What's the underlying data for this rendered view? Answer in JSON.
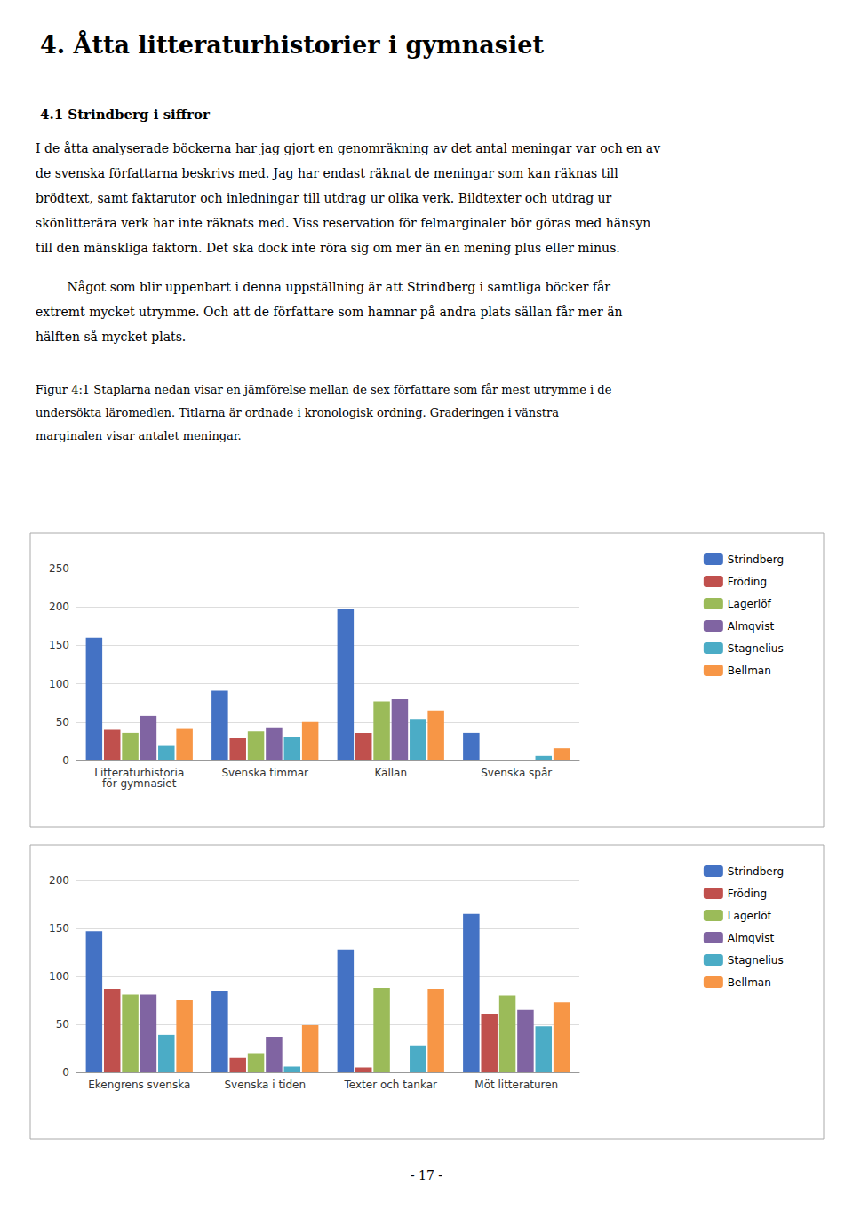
{
  "title": "4. Åtta litteraturhistorier i gymnasiet",
  "subtitle": "4.1 Strindberg i siffror",
  "annotations": [
    [
      "I de åtta analyserade böckerna har jag gjort en genomräkning av det antal meningar var och en av",
      "de svenska författarna beskrivs med. Jag har endast räknat de meningar som kan räknas till",
      "brödtext, samt faktarutor och inledningar till utdrag ur olika verk. Bildtexter och utdrag ur",
      "skönlitterära verk har inte räknats med. Viss reservation för felmarginaler bör göras med hänsyn",
      "till den mänskliga faktorn. Det ska dock inte röra sig om mer än en mening plus eller minus."
    ],
    [
      "        Något som blir uppenbart i denna uppställning är att Strindberg i samtliga böcker får",
      "extremt mycket utrymme. Och att de författare som hamnar på andra plats sällan får mer än",
      "hälften så mycket plats."
    ],
    [
      "Figur 4:1 Staplarna nedan visar en jämförelse mellan de sex författare som får mest utrymme i de",
      "undersökta läromedlen. Titlarna är ordnade i kronologisk ordning. Graderingen i vänstra",
      "marginalen visar antalet meningar."
    ],
    [
      "- 17 -"
    ]
  ],
  "chart_data": [
    {
      "type": "bar",
      "categories": [
        "Litteraturhistoria\nför gymnasiet",
        "Svenska timmar",
        "Källan",
        "Svenska spår"
      ],
      "series": [
        {
          "name": "Strindberg",
          "color": "#4472C4",
          "values": [
            160,
            91,
            197,
            36
          ]
        },
        {
          "name": "Fröding",
          "color": "#C0504D",
          "values": [
            40,
            29,
            36,
            0
          ]
        },
        {
          "name": "Lagerlöf",
          "color": "#9BBB59",
          "values": [
            36,
            38,
            77,
            0
          ]
        },
        {
          "name": "Almqvist",
          "color": "#8064A2",
          "values": [
            58,
            43,
            80,
            0
          ]
        },
        {
          "name": "Stagnelius",
          "color": "#4BACC6",
          "values": [
            19,
            30,
            54,
            6
          ]
        },
        {
          "name": "Bellman",
          "color": "#F79646",
          "values": [
            41,
            50,
            65,
            16
          ]
        }
      ],
      "ylim": [
        0,
        250
      ],
      "yticks": [
        0,
        50,
        100,
        150,
        200,
        250
      ],
      "grid": true,
      "legend": "upper right"
    },
    {
      "type": "bar",
      "categories": [
        "Ekengrens svenska",
        "Svenska i tiden",
        "Texter och tankar",
        "Möt litteraturen"
      ],
      "series": [
        {
          "name": "Strindberg",
          "color": "#4472C4",
          "values": [
            147,
            85,
            128,
            165
          ]
        },
        {
          "name": "Fröding",
          "color": "#C0504D",
          "values": [
            87,
            15,
            5,
            61
          ]
        },
        {
          "name": "Lagerlöf",
          "color": "#9BBB59",
          "values": [
            81,
            20,
            88,
            80
          ]
        },
        {
          "name": "Almqvist",
          "color": "#8064A2",
          "values": [
            81,
            37,
            0,
            65
          ]
        },
        {
          "name": "Stagnelius",
          "color": "#4BACC6",
          "values": [
            39,
            6,
            28,
            48
          ]
        },
        {
          "name": "Bellman",
          "color": "#F79646",
          "values": [
            75,
            49,
            87,
            73
          ]
        }
      ],
      "ylim": [
        0,
        200
      ],
      "yticks": [
        0,
        50,
        100,
        150,
        200
      ],
      "grid": true,
      "legend": "upper right"
    }
  ]
}
